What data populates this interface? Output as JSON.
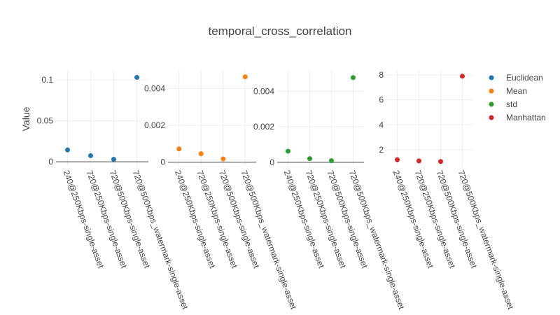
{
  "chart_data": {
    "type": "scatter",
    "title": "temporal_cross_correlation",
    "ylabel": "Value",
    "categories": [
      "240@250Kbps-single-asset",
      "720@250Kbps-single-asset",
      "720@500Kbps-single-asset",
      "720@500Kbps_watermark-single-asset"
    ],
    "legend": {
      "placement": "right"
    },
    "grid": true,
    "panels": [
      {
        "series_name": "Euclidean",
        "color": "#1f77b4",
        "values": [
          0.0145,
          0.0075,
          0.003,
          0.103
        ],
        "ylim": [
          -0.005,
          0.112
        ],
        "yticks": [
          0,
          0.05,
          0.1
        ],
        "yticklabels": [
          "0",
          "0.05",
          "0.1"
        ]
      },
      {
        "series_name": "Mean",
        "color": "#ff7f0e",
        "values": [
          0.00072,
          0.00046,
          0.00018,
          0.00463
        ],
        "ylim": [
          -0.0002,
          0.005
        ],
        "yticks": [
          0,
          0.002,
          0.004
        ],
        "yticklabels": [
          "0",
          "0.002",
          "0.004"
        ]
      },
      {
        "series_name": "std",
        "color": "#2ca02c",
        "values": [
          0.00063,
          0.00021,
          9e-05,
          0.00477
        ],
        "ylim": [
          -0.0002,
          0.0052
        ],
        "yticks": [
          0,
          0.002,
          0.004
        ],
        "yticklabels": [
          "0",
          "0.002",
          "0.004"
        ]
      },
      {
        "series_name": "Manhattan",
        "color": "#d62728",
        "values": [
          1.2,
          1.1,
          1.05,
          7.9
        ],
        "ylim": [
          0.7,
          8.4
        ],
        "yticks": [
          2,
          4,
          6,
          8
        ],
        "yticklabels": [
          "2",
          "4",
          "6",
          "8"
        ]
      }
    ]
  }
}
